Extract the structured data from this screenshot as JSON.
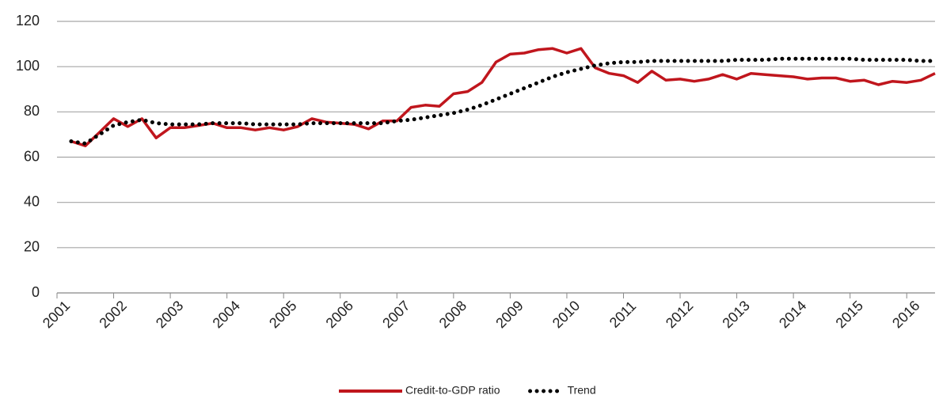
{
  "chart_data": {
    "type": "line",
    "x": [
      2001.25,
      2001.5,
      2001.75,
      2002,
      2002.25,
      2002.5,
      2002.75,
      2003,
      2003.25,
      2003.5,
      2003.75,
      2004,
      2004.25,
      2004.5,
      2004.75,
      2005,
      2005.25,
      2005.5,
      2005.75,
      2006,
      2006.25,
      2006.5,
      2006.75,
      2007,
      2007.25,
      2007.5,
      2007.75,
      2008,
      2008.25,
      2008.5,
      2008.75,
      2009,
      2009.25,
      2009.5,
      2009.75,
      2010,
      2010.25,
      2010.5,
      2010.75,
      2011,
      2011.25,
      2011.5,
      2011.75,
      2012,
      2012.25,
      2012.5,
      2012.75,
      2013,
      2013.25,
      2013.5,
      2013.75,
      2014,
      2014.25,
      2014.5,
      2014.75,
      2015,
      2015.25,
      2015.5,
      2015.75,
      2016,
      2016.25,
      2016.5
    ],
    "series": [
      {
        "name": "Credit-to-GDP ratio",
        "color": "#c0161d",
        "style": "solid",
        "values": [
          67,
          65,
          71,
          77,
          73.5,
          77,
          68.5,
          73,
          73,
          74,
          75,
          73,
          73,
          72,
          73,
          72,
          73.5,
          77,
          75.5,
          75,
          74.5,
          72.5,
          76,
          76,
          82,
          83,
          82.5,
          88,
          89,
          93,
          102,
          105.5,
          106,
          107.5,
          108,
          106,
          108,
          99.5,
          97,
          96,
          93,
          98,
          94,
          94.5,
          93.5,
          94.5,
          96.5,
          94.5,
          97,
          96.5,
          96,
          95.5,
          94.5,
          95,
          95,
          93.5,
          94,
          92,
          93.5,
          93,
          94,
          97
        ]
      },
      {
        "name": "Trend",
        "color": "#000000",
        "style": "dotted",
        "values": [
          67,
          66,
          70,
          74,
          75.5,
          76.5,
          75,
          74.5,
          74.5,
          74.5,
          75,
          75,
          75,
          74.5,
          74.5,
          74.5,
          74.5,
          75,
          75,
          75,
          75,
          75,
          75,
          76,
          76.5,
          77.5,
          78.5,
          79.5,
          81,
          83,
          85.5,
          88,
          90.5,
          93,
          95.5,
          97.5,
          99,
          100.5,
          101.5,
          102,
          102,
          102.5,
          102.5,
          102.5,
          102.5,
          102.5,
          102.5,
          103,
          103,
          103,
          103.5,
          103.5,
          103.5,
          103.5,
          103.5,
          103.5,
          103,
          103,
          103,
          103,
          102.5,
          102.5
        ]
      }
    ],
    "xlim": [
      2001,
      2016.5
    ],
    "xticks": [
      2001,
      2002,
      2003,
      2004,
      2005,
      2006,
      2007,
      2008,
      2009,
      2010,
      2011,
      2012,
      2013,
      2014,
      2015,
      2016
    ],
    "ylim": [
      0,
      120
    ],
    "yticks": [
      0,
      20,
      40,
      60,
      80,
      100,
      120
    ],
    "grid": true,
    "legend": "bottom"
  }
}
